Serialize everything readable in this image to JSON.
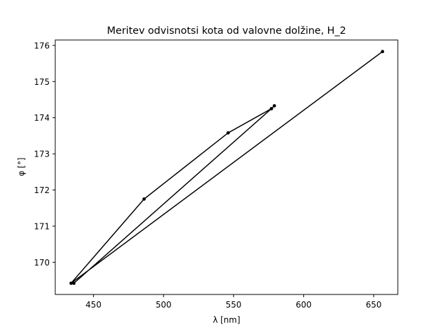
{
  "chart_data": {
    "type": "line",
    "title": "Meritev odvisnotsi kota od valovne dolžine, H_2",
    "xlabel": "λ [nm]",
    "ylabel": "φ [°]",
    "xlim": [
      422.7,
      667.2
    ],
    "ylim": [
      169.11,
      176.15
    ],
    "xticks": [
      450,
      500,
      550,
      600,
      650
    ],
    "yticks": [
      170,
      171,
      172,
      173,
      174,
      175,
      176
    ],
    "grid": false,
    "series": [
      {
        "color": "#000000",
        "marker": "dot",
        "x": [
          656.3,
          434.0,
          486.1,
          546.1,
          577.0,
          579.1,
          577.0,
          436.0
        ],
        "y": [
          175.83,
          169.42,
          171.75,
          173.58,
          174.25,
          174.33,
          174.25,
          169.42
        ]
      }
    ]
  }
}
